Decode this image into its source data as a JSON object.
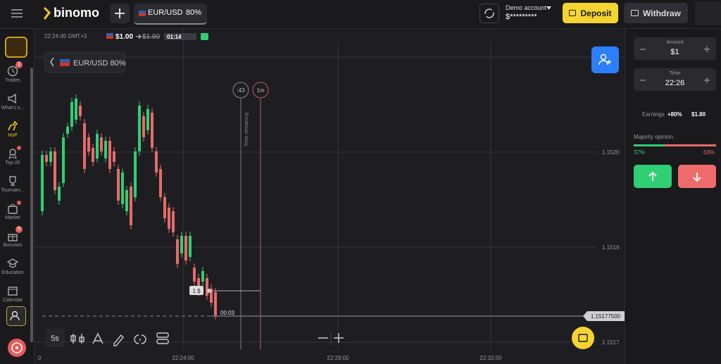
{
  "header": {
    "logo": "binomo",
    "asset": "EUR/USD",
    "payout": "80%",
    "account_type": "Demo account",
    "balance": "$*********",
    "deposit": "Deposit",
    "withdraw": "Withdraw"
  },
  "sidebar": [
    {
      "label": "Trades",
      "badge": "1"
    },
    {
      "label": "What's n..."
    },
    {
      "label": "HoP"
    },
    {
      "label": "Top-20"
    },
    {
      "label": "Tournam..."
    },
    {
      "label": "Market"
    },
    {
      "label": "Bonuses",
      "badge": "5"
    },
    {
      "label": "Education"
    },
    {
      "label": "Calendar"
    }
  ],
  "chart": {
    "clock": "22:24:45 GMT+3",
    "bet": "$1.00",
    "payout": "$1.80",
    "countdown": "01:14",
    "asset_label": "EUR/USD 80%",
    "timer": ":43",
    "period": "1m",
    "time_remaining": "Time remaining",
    "price_ticks": [
      "1.1520",
      "1.1519",
      "1.1517"
    ],
    "current_price": "1.15177500",
    "trade_amount": "1 $",
    "trade_timer": "00:03",
    "time_ticks": [
      "0",
      "22:24:00",
      "22:28:00",
      "22:32:00"
    ],
    "interval": "5s"
  },
  "panel": {
    "amount_label": "Amount",
    "amount": "$1",
    "time_label": "Time",
    "time": "22:26",
    "earnings_label": "Earnings",
    "earnings_pct": "+80%",
    "earnings": "$1.80",
    "opinion_label": "Majority opinion",
    "up_pct": "37%",
    "down_pct": "63%"
  }
}
